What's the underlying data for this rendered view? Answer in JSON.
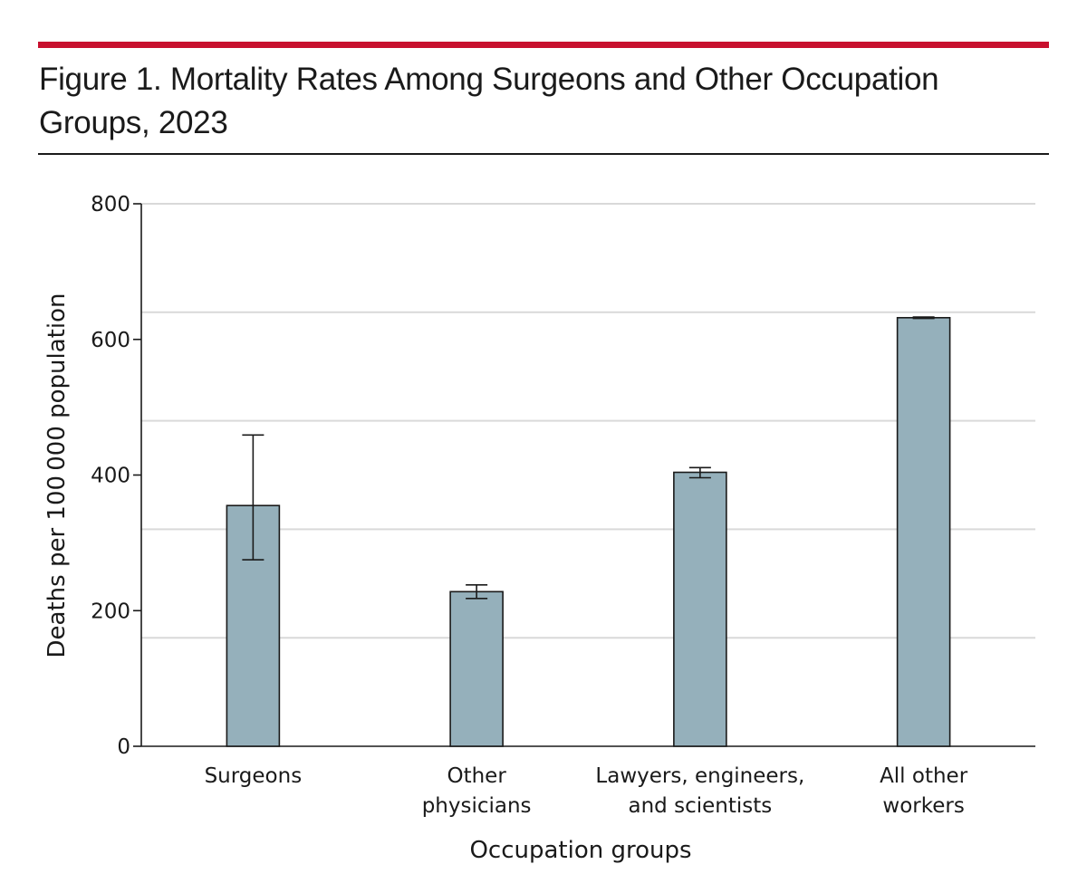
{
  "header": {
    "title": "Figure 1. Mortality Rates Among Surgeons and Other Occupation Groups, 2023",
    "rule_color": "#c8102e"
  },
  "chart_data": {
    "type": "bar",
    "title": "Figure 1. Mortality Rates Among Surgeons and Other Occupation Groups, 2023",
    "xlabel": "Occupation groups",
    "ylabel": "Deaths per 100 000 population",
    "ylim": [
      0,
      800
    ],
    "yticks": [
      0,
      200,
      400,
      600,
      800
    ],
    "gridlines": [
      160,
      320,
      480,
      640,
      800
    ],
    "grid": true,
    "bar_color": "#95b0bb",
    "categories": [
      [
        "Surgeons"
      ],
      [
        "Other",
        "physicians"
      ],
      [
        "Lawyers, engineers,",
        "and scientists"
      ],
      [
        "All other",
        "workers"
      ]
    ],
    "values": [
      355,
      228,
      404,
      632
    ],
    "error_low": [
      275,
      218,
      396,
      631
    ],
    "error_high": [
      459,
      238,
      411,
      633
    ]
  }
}
